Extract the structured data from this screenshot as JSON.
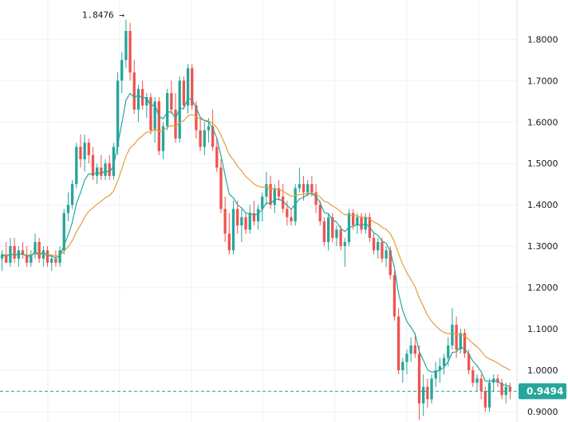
{
  "chart_data": {
    "type": "candlestick",
    "title": "",
    "xlabel": "",
    "ylabel": "",
    "ylim": [
      0.875,
      1.895
    ],
    "y_ticks": [
      "1.8000",
      "1.7000",
      "1.6000",
      "1.5000",
      "1.4000",
      "1.3000",
      "1.2000",
      "1.1000",
      "1.0000",
      "0.9000"
    ],
    "grid": true,
    "colors": {
      "up": "#26a69a",
      "down": "#ef5350",
      "ma_fast": "#26a69a",
      "ma_slow": "#e0a03a",
      "grid": "#eef0f3",
      "axis_border": "#e0e3eb",
      "last_price": "#26a69a"
    },
    "high_marker": {
      "label": "1.8476 →",
      "value": 1.8476
    },
    "last_price": {
      "label": "0.9494",
      "value": 0.9494
    },
    "candles": [
      [
        1.27,
        1.29,
        1.24,
        1.28
      ],
      [
        1.28,
        1.31,
        1.26,
        1.26
      ],
      [
        1.26,
        1.32,
        1.25,
        1.3
      ],
      [
        1.3,
        1.32,
        1.26,
        1.27
      ],
      [
        1.27,
        1.3,
        1.25,
        1.29
      ],
      [
        1.29,
        1.31,
        1.27,
        1.28
      ],
      [
        1.28,
        1.3,
        1.25,
        1.26
      ],
      [
        1.26,
        1.29,
        1.25,
        1.28
      ],
      [
        1.28,
        1.33,
        1.27,
        1.31
      ],
      [
        1.31,
        1.32,
        1.26,
        1.27
      ],
      [
        1.27,
        1.3,
        1.25,
        1.29
      ],
      [
        1.29,
        1.3,
        1.25,
        1.26
      ],
      [
        1.26,
        1.28,
        1.24,
        1.27
      ],
      [
        1.27,
        1.29,
        1.25,
        1.26
      ],
      [
        1.26,
        1.3,
        1.25,
        1.29
      ],
      [
        1.29,
        1.39,
        1.28,
        1.38
      ],
      [
        1.38,
        1.43,
        1.36,
        1.4
      ],
      [
        1.4,
        1.46,
        1.39,
        1.45
      ],
      [
        1.45,
        1.55,
        1.44,
        1.54
      ],
      [
        1.54,
        1.57,
        1.49,
        1.51
      ],
      [
        1.51,
        1.57,
        1.48,
        1.55
      ],
      [
        1.55,
        1.56,
        1.5,
        1.52
      ],
      [
        1.52,
        1.54,
        1.46,
        1.47
      ],
      [
        1.47,
        1.5,
        1.45,
        1.49
      ],
      [
        1.49,
        1.52,
        1.46,
        1.47
      ],
      [
        1.47,
        1.51,
        1.46,
        1.5
      ],
      [
        1.5,
        1.52,
        1.46,
        1.47
      ],
      [
        1.47,
        1.55,
        1.46,
        1.54
      ],
      [
        1.54,
        1.72,
        1.52,
        1.7
      ],
      [
        1.7,
        1.77,
        1.67,
        1.75
      ],
      [
        1.75,
        1.8476,
        1.73,
        1.82
      ],
      [
        1.82,
        1.84,
        1.7,
        1.72
      ],
      [
        1.72,
        1.75,
        1.62,
        1.63
      ],
      [
        1.63,
        1.69,
        1.6,
        1.68
      ],
      [
        1.68,
        1.7,
        1.63,
        1.64
      ],
      [
        1.64,
        1.67,
        1.61,
        1.66
      ],
      [
        1.66,
        1.67,
        1.57,
        1.58
      ],
      [
        1.58,
        1.66,
        1.55,
        1.65
      ],
      [
        1.65,
        1.66,
        1.52,
        1.53
      ],
      [
        1.53,
        1.6,
        1.51,
        1.59
      ],
      [
        1.59,
        1.68,
        1.58,
        1.67
      ],
      [
        1.67,
        1.7,
        1.62,
        1.63
      ],
      [
        1.63,
        1.67,
        1.55,
        1.56
      ],
      [
        1.56,
        1.71,
        1.55,
        1.7
      ],
      [
        1.7,
        1.71,
        1.63,
        1.64
      ],
      [
        1.64,
        1.74,
        1.62,
        1.73
      ],
      [
        1.73,
        1.74,
        1.63,
        1.64
      ],
      [
        1.64,
        1.65,
        1.56,
        1.58
      ],
      [
        1.58,
        1.61,
        1.53,
        1.54
      ],
      [
        1.54,
        1.6,
        1.52,
        1.58
      ],
      [
        1.58,
        1.61,
        1.55,
        1.59
      ],
      [
        1.59,
        1.63,
        1.53,
        1.54
      ],
      [
        1.54,
        1.56,
        1.48,
        1.49
      ],
      [
        1.49,
        1.51,
        1.38,
        1.39
      ],
      [
        1.39,
        1.42,
        1.31,
        1.33
      ],
      [
        1.33,
        1.38,
        1.28,
        1.29
      ],
      [
        1.29,
        1.41,
        1.28,
        1.39
      ],
      [
        1.39,
        1.41,
        1.33,
        1.35
      ],
      [
        1.35,
        1.39,
        1.31,
        1.37
      ],
      [
        1.37,
        1.38,
        1.33,
        1.34
      ],
      [
        1.34,
        1.4,
        1.33,
        1.38
      ],
      [
        1.38,
        1.41,
        1.35,
        1.36
      ],
      [
        1.36,
        1.4,
        1.34,
        1.39
      ],
      [
        1.39,
        1.43,
        1.36,
        1.42
      ],
      [
        1.42,
        1.48,
        1.4,
        1.45
      ],
      [
        1.45,
        1.47,
        1.39,
        1.4
      ],
      [
        1.4,
        1.45,
        1.38,
        1.44
      ],
      [
        1.44,
        1.46,
        1.41,
        1.42
      ],
      [
        1.42,
        1.45,
        1.38,
        1.39
      ],
      [
        1.39,
        1.41,
        1.35,
        1.37
      ],
      [
        1.37,
        1.39,
        1.35,
        1.36
      ],
      [
        1.36,
        1.45,
        1.35,
        1.44
      ],
      [
        1.44,
        1.49,
        1.43,
        1.45
      ],
      [
        1.45,
        1.47,
        1.41,
        1.43
      ],
      [
        1.43,
        1.46,
        1.42,
        1.45
      ],
      [
        1.45,
        1.47,
        1.42,
        1.43
      ],
      [
        1.43,
        1.45,
        1.38,
        1.4
      ],
      [
        1.4,
        1.41,
        1.35,
        1.36
      ],
      [
        1.36,
        1.37,
        1.3,
        1.31
      ],
      [
        1.31,
        1.38,
        1.29,
        1.37
      ],
      [
        1.37,
        1.38,
        1.31,
        1.32
      ],
      [
        1.32,
        1.35,
        1.3,
        1.34
      ],
      [
        1.34,
        1.35,
        1.29,
        1.3
      ],
      [
        1.3,
        1.32,
        1.25,
        1.31
      ],
      [
        1.31,
        1.39,
        1.3,
        1.38
      ],
      [
        1.38,
        1.39,
        1.34,
        1.35
      ],
      [
        1.35,
        1.38,
        1.33,
        1.37
      ],
      [
        1.37,
        1.38,
        1.33,
        1.34
      ],
      [
        1.34,
        1.38,
        1.33,
        1.37
      ],
      [
        1.37,
        1.38,
        1.31,
        1.32
      ],
      [
        1.32,
        1.33,
        1.28,
        1.29
      ],
      [
        1.29,
        1.32,
        1.27,
        1.31
      ],
      [
        1.31,
        1.32,
        1.26,
        1.27
      ],
      [
        1.27,
        1.3,
        1.25,
        1.29
      ],
      [
        1.29,
        1.3,
        1.22,
        1.23
      ],
      [
        1.23,
        1.24,
        1.12,
        1.13
      ],
      [
        1.13,
        1.15,
        0.99,
        1.0
      ],
      [
        1.0,
        1.03,
        0.97,
        1.02
      ],
      [
        1.02,
        1.05,
        0.99,
        1.04
      ],
      [
        1.04,
        1.08,
        1.02,
        1.06
      ],
      [
        1.06,
        1.09,
        1.03,
        1.04
      ],
      [
        1.04,
        1.06,
        0.88,
        0.92
      ],
      [
        0.92,
        0.99,
        0.89,
        0.96
      ],
      [
        0.96,
        0.98,
        0.91,
        0.93
      ],
      [
        0.93,
        0.99,
        0.92,
        0.98
      ],
      [
        0.98,
        1.02,
        0.96,
        1.0
      ],
      [
        1.0,
        1.03,
        0.97,
        1.01
      ],
      [
        1.01,
        1.04,
        0.99,
        1.03
      ],
      [
        1.03,
        1.08,
        1.01,
        1.06
      ],
      [
        1.06,
        1.15,
        1.05,
        1.11
      ],
      [
        1.11,
        1.13,
        1.03,
        1.05
      ],
      [
        1.05,
        1.1,
        1.04,
        1.09
      ],
      [
        1.09,
        1.1,
        1.03,
        1.04
      ],
      [
        1.04,
        1.05,
        0.99,
        1.0
      ],
      [
        1.0,
        1.01,
        0.96,
        0.97
      ],
      [
        0.97,
        0.99,
        0.95,
        0.98
      ],
      [
        0.98,
        0.99,
        0.93,
        0.95
      ],
      [
        0.95,
        0.96,
        0.9,
        0.91
      ],
      [
        0.91,
        0.98,
        0.9,
        0.97
      ],
      [
        0.97,
        0.99,
        0.95,
        0.98
      ],
      [
        0.98,
        0.99,
        0.96,
        0.97
      ],
      [
        0.97,
        0.98,
        0.93,
        0.94
      ],
      [
        0.94,
        0.97,
        0.92,
        0.96
      ],
      [
        0.96,
        0.97,
        0.93,
        0.95
      ]
    ]
  }
}
